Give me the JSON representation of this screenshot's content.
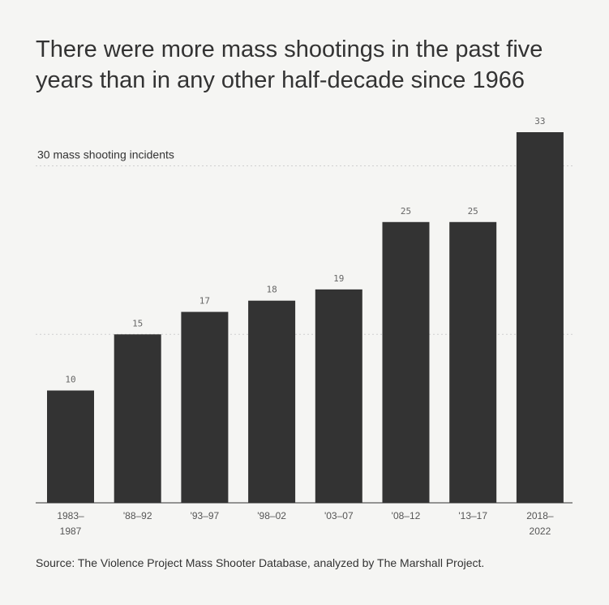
{
  "chart_data": {
    "type": "bar",
    "title": "There were more mass shootings in the past five years than in any other half-decade since 1966",
    "categories": [
      [
        "1983–",
        "1987"
      ],
      [
        "'88–92"
      ],
      [
        "'93–97"
      ],
      [
        "'98–02"
      ],
      [
        "'03–07"
      ],
      [
        "'08–12"
      ],
      [
        "'13–17"
      ],
      [
        "2018–",
        "2022"
      ]
    ],
    "values": [
      10,
      15,
      17,
      18,
      19,
      25,
      25,
      33
    ],
    "ylim": [
      0,
      33
    ],
    "gridlines": [
      15,
      30
    ],
    "reference_label": "30 mass shooting incidents",
    "grid": true,
    "bar_color": "#333333",
    "background": "#f5f5f3"
  },
  "source": "Source: The Violence Project Mass Shooter Database, analyzed by The Marshall Project."
}
